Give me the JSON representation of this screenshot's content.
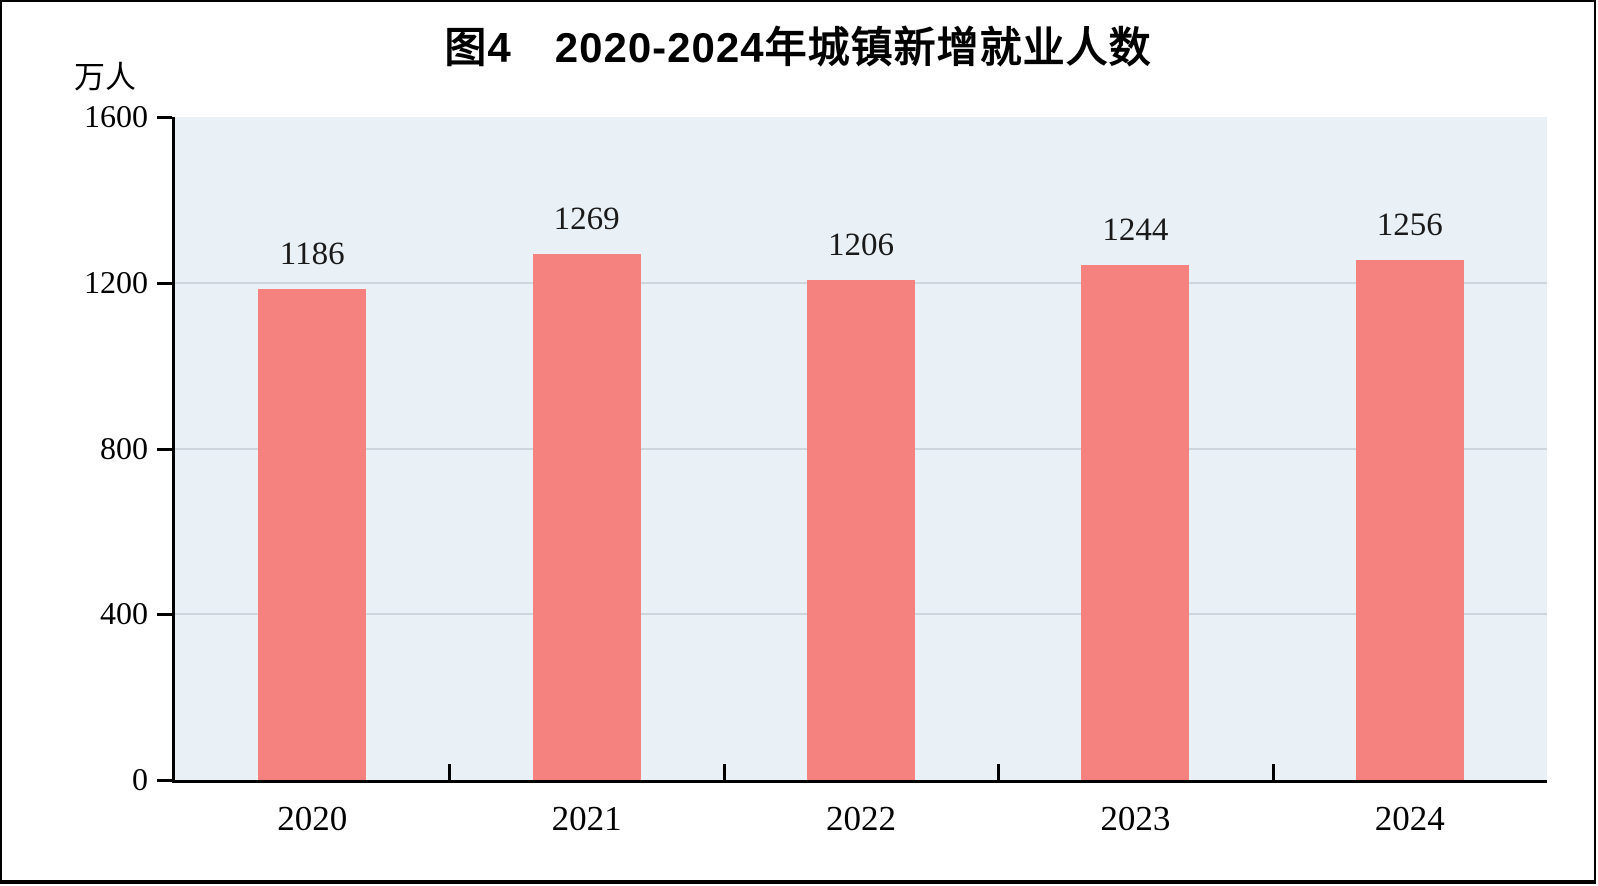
{
  "chart_data": {
    "type": "bar",
    "title": "图4　2020-2024年城镇新增就业人数",
    "unit": "万人",
    "categories": [
      "2020",
      "2021",
      "2022",
      "2023",
      "2024"
    ],
    "values": [
      1186,
      1269,
      1206,
      1244,
      1256
    ],
    "ylim": [
      0,
      1600
    ],
    "ytick_step": 400,
    "yticks": [
      0,
      400,
      800,
      1200,
      1600
    ],
    "grid": "horizontal",
    "legend": "none",
    "colors": {
      "bar": "#F5827E",
      "plot_background": "#E9F1F6",
      "gridline": "#CCD6DC",
      "axis": "#000000",
      "text": "#000000"
    }
  }
}
